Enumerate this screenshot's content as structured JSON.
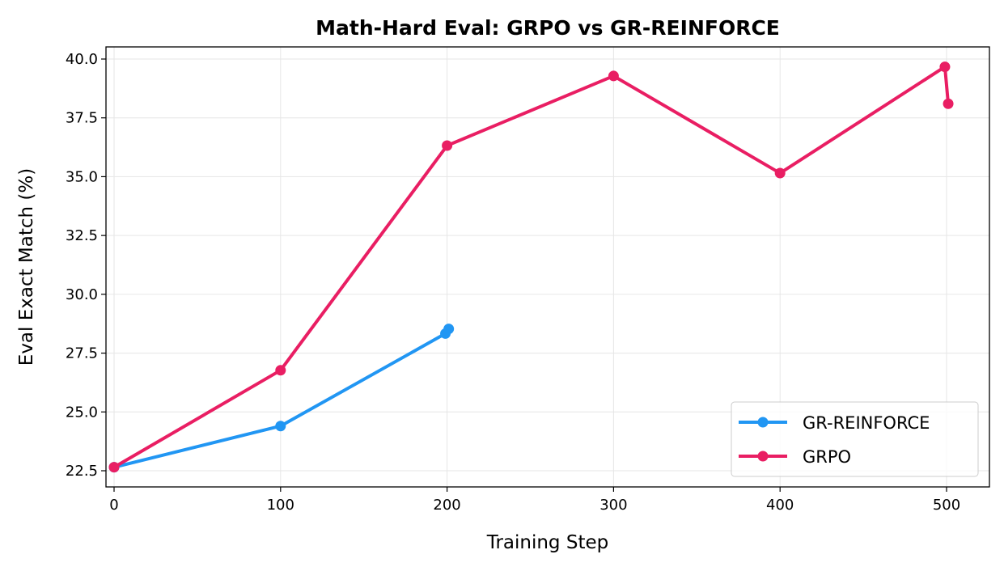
{
  "chart_data": {
    "type": "line",
    "title": "Math-Hard Eval: GRPO vs GR-REINFORCE",
    "xlabel": "Training Step",
    "ylabel": "Eval Exact Match (%)",
    "xlim": [
      -5,
      525
    ],
    "ylim": [
      21.8,
      40.5
    ],
    "xticks": [
      0,
      100,
      200,
      300,
      400,
      500
    ],
    "yticks": [
      22.5,
      25.0,
      27.5,
      30.0,
      32.5,
      35.0,
      37.5,
      40.0
    ],
    "xtick_labels": [
      "0",
      "100",
      "200",
      "300",
      "400",
      "500"
    ],
    "ytick_labels": [
      "22.5",
      "25.0",
      "27.5",
      "30.0",
      "32.5",
      "35.0",
      "37.5",
      "40.0"
    ],
    "grid": true,
    "legend_position": "lower-right",
    "series": [
      {
        "name": "GR-REINFORCE",
        "color": "#2196F3",
        "x": [
          0,
          100,
          199,
          201
        ],
        "y": [
          22.65,
          24.4,
          28.33,
          28.53
        ]
      },
      {
        "name": "GRPO",
        "color": "#E91E63",
        "x": [
          0,
          100,
          200,
          300,
          400,
          499,
          501
        ],
        "y": [
          22.65,
          26.77,
          36.32,
          39.28,
          35.15,
          39.67,
          38.1
        ]
      }
    ]
  }
}
